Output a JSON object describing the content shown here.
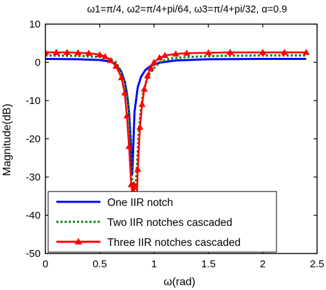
{
  "chart_data": {
    "type": "line",
    "title": "ω1=π/4,   ω2=π/4+pi/64,   ω3=π/4+pi/32,   α=0.9",
    "xlabel": "ω(rad)",
    "ylabel": "Magnitude(dB)",
    "xlim": [
      0,
      2.5
    ],
    "ylim": [
      -50,
      10
    ],
    "xticks": [
      0,
      0.5,
      1,
      1.5,
      2,
      2.5
    ],
    "yticks": [
      10,
      0,
      -10,
      -20,
      -30,
      -40,
      -50
    ],
    "xtick_labels": [
      "0",
      "0.5",
      "1",
      "1.5",
      "2",
      "2.5"
    ],
    "ytick_labels": [
      "10",
      "0",
      "-10",
      "-20",
      "-30",
      "-40",
      "-50"
    ],
    "grid": false,
    "legend_position": "bottom-left",
    "series": [
      {
        "name": "One IIR notch",
        "color": "#0000ff",
        "style": "solid",
        "x": [
          0,
          0.3,
          0.5,
          0.6,
          0.65,
          0.7,
          0.73,
          0.75,
          0.77,
          0.785,
          0.8,
          0.82,
          0.85,
          0.88,
          0.92,
          0.97,
          1.05,
          1.2,
          1.5,
          2.0,
          2.4
        ],
        "y": [
          0.9,
          0.8,
          0.6,
          0.2,
          -0.6,
          -2.5,
          -5,
          -8,
          -13,
          -20,
          -29,
          -13,
          -6.5,
          -3.8,
          -2.0,
          -0.9,
          -0.1,
          0.5,
          0.8,
          0.9,
          0.9
        ]
      },
      {
        "name": "Two IIR notches cascaded",
        "color": "#008000",
        "style": "dotted",
        "x": [
          0,
          0.3,
          0.5,
          0.6,
          0.65,
          0.7,
          0.73,
          0.76,
          0.78,
          0.8,
          0.82,
          0.84,
          0.86,
          0.88,
          0.9,
          0.93,
          0.96,
          1.0,
          1.05,
          1.15,
          1.3,
          1.6,
          2.0,
          2.4
        ],
        "y": [
          1.8,
          1.7,
          1.4,
          0.9,
          0,
          -2.5,
          -5,
          -10,
          -18,
          -31,
          -35,
          -29,
          -18,
          -12,
          -8,
          -5,
          -3,
          -1.5,
          0,
          1.0,
          1.4,
          1.7,
          1.8,
          1.8
        ]
      },
      {
        "name": "Three IIR notches cascaded",
        "color": "#ff0000",
        "style": "solid-triangle",
        "x": [
          0,
          0.1,
          0.2,
          0.3,
          0.4,
          0.5,
          0.55,
          0.6,
          0.65,
          0.7,
          0.73,
          0.75,
          0.77,
          0.79,
          0.8,
          0.815,
          0.83,
          0.85,
          0.87,
          0.89,
          0.91,
          0.94,
          0.97,
          1.0,
          1.05,
          1.1,
          1.2,
          1.3,
          1.5,
          1.7,
          2.0,
          2.2,
          2.4
        ],
        "y": [
          2.6,
          2.6,
          2.6,
          2.5,
          2.4,
          2.0,
          1.5,
          0.5,
          -1.0,
          -4,
          -8,
          -14,
          -22,
          -32,
          -34,
          -32,
          -45,
          -28,
          -17,
          -11,
          -7,
          -3.5,
          -1.5,
          0,
          1.2,
          1.8,
          2.2,
          2.4,
          2.5,
          2.6,
          2.6,
          2.6,
          2.6
        ]
      }
    ]
  }
}
